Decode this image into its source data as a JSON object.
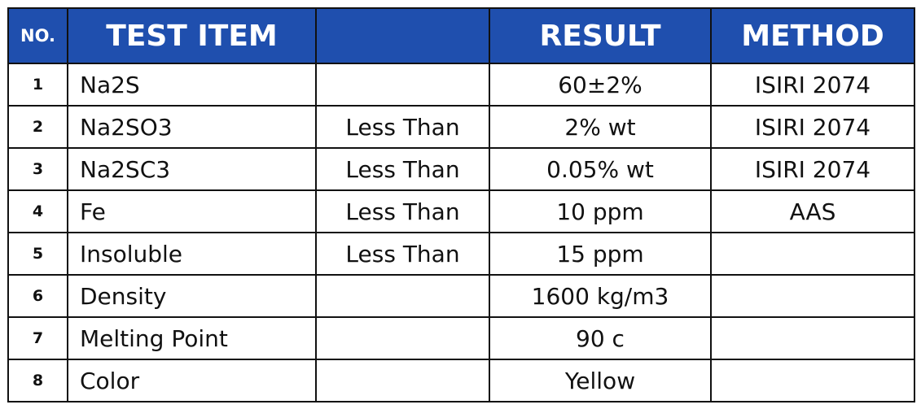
{
  "table": {
    "header": [
      "NO.",
      "TEST ITEM",
      "RESULT",
      "METHOD"
    ],
    "rows": [
      {
        "no": "1",
        "item": "Na2S",
        "result": "60±2%",
        "method": "ISIRI 2074"
      },
      {
        "no": "2",
        "item": "Na2SO3",
        "qualifier": "Less Than",
        "result": "2% wt",
        "method": "ISIRI 2074"
      },
      {
        "no": "3",
        "item": "Na2SC3",
        "qualifier": "Less Than",
        "result": "0.05% wt",
        "method": "ISIRI 2074"
      },
      {
        "no": "4",
        "item": "Fe",
        "qualifier": "Less Than",
        "result": "10 ppm",
        "method": "AAS"
      },
      {
        "no": "5",
        "item": "Insoluble",
        "qualifier": "Less Than",
        "result": "15 ppm"
      },
      {
        "no": "6",
        "item": "Density",
        "result": "1600 kg/m3"
      },
      {
        "no": "7",
        "item": "Melting Point",
        "result": "90 c"
      },
      {
        "no": "8",
        "item": "Color",
        "result": "Yellow"
      }
    ]
  }
}
